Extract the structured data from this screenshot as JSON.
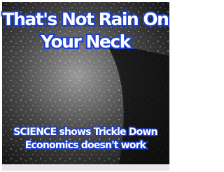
{
  "meme": {
    "headline": [
      "That's Not Rain On",
      "Your Neck"
    ],
    "caption": [
      "SCIENCE shows Trickle Down",
      "Economics doesn't work"
    ]
  }
}
